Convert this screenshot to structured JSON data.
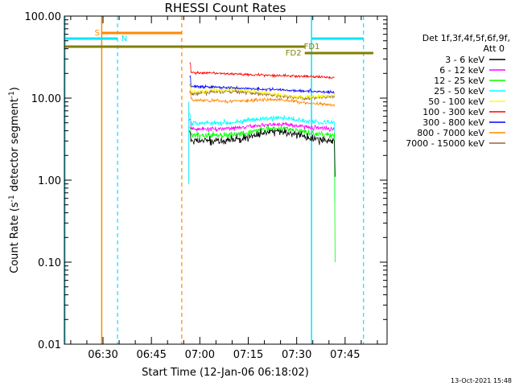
{
  "chart_data": {
    "type": "line",
    "title": "RHESSI Count Rates",
    "xlabel": "Start Time (12-Jan-06 06:18:02)",
    "ylabel_main": "Count Rate (s",
    "ylabel_sup": "-1",
    "ylabel_tail": " detector segment",
    "ylabel_sup2": "-1",
    "ylabel_close": ")",
    "yscale": "log",
    "ylim": [
      0.01,
      100
    ],
    "xlim": [
      "06:18:02",
      "07:58:00"
    ],
    "y_tick_labels": [
      "0.01",
      "0.10",
      "1.00",
      "10.00",
      "100.00"
    ],
    "y_tick_values": [
      0.01,
      0.1,
      1,
      10,
      100
    ],
    "x_tick_labels": [
      "06:30",
      "06:45",
      "07:00",
      "07:15",
      "07:30",
      "07:45"
    ],
    "x_tick_minutes": [
      30,
      45,
      60,
      75,
      90,
      105
    ],
    "legend": {
      "header1": "Det 1f,3f,4f,5f,6f,9f,",
      "header2": "Att 0",
      "placement": "right"
    },
    "series": [
      {
        "name": "3 - 6 keV",
        "color": "#000000"
      },
      {
        "name": "6 - 12 keV",
        "color": "#ff00ff"
      },
      {
        "name": "12 - 25 keV",
        "color": "#00ff00"
      },
      {
        "name": "25 - 50 keV",
        "color": "#00ffff"
      },
      {
        "name": "50 - 100 keV",
        "color": "#ffff00"
      },
      {
        "name": "100 - 300 keV",
        "color": "#ff0000"
      },
      {
        "name": "300 - 800 keV",
        "color": "#0000ff"
      },
      {
        "name": "800 - 7000 keV",
        "color": "#ff8800"
      },
      {
        "name": "7000 - 15000 keV",
        "color": "#996633"
      }
    ],
    "annotations": {
      "s_label": "S",
      "n_label": "N",
      "fd1_label": "FD1",
      "fd2_label": "FD2"
    },
    "footer_timestamp": "13-Oct-2021 15:48"
  }
}
